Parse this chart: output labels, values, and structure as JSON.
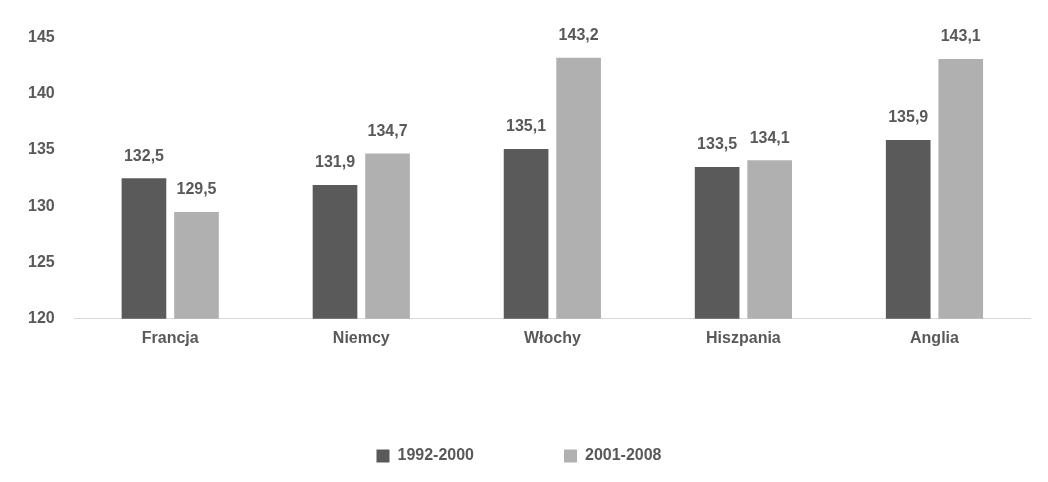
{
  "chart_data": {
    "type": "bar",
    "categories": [
      "Francja",
      "Niemcy",
      "Włochy",
      "Hiszpania",
      "Anglia"
    ],
    "series": [
      {
        "name": "1992-2000",
        "color": "#5a5a5a",
        "values": [
          132.5,
          131.9,
          135.1,
          133.5,
          135.9
        ],
        "value_labels": [
          "132,5",
          "131,9",
          "135,1",
          "133,5",
          "135,9"
        ]
      },
      {
        "name": "2001-2008",
        "color": "#b0b0b0",
        "values": [
          129.5,
          134.7,
          143.2,
          134.1,
          143.1
        ],
        "value_labels": [
          "129,5",
          "134,7",
          "143,2",
          "134,1",
          "143,1"
        ]
      }
    ],
    "ylim": [
      120,
      145
    ],
    "yticks": [
      120,
      125,
      130,
      135,
      140,
      145
    ],
    "grid": false,
    "legend": "bottom"
  }
}
